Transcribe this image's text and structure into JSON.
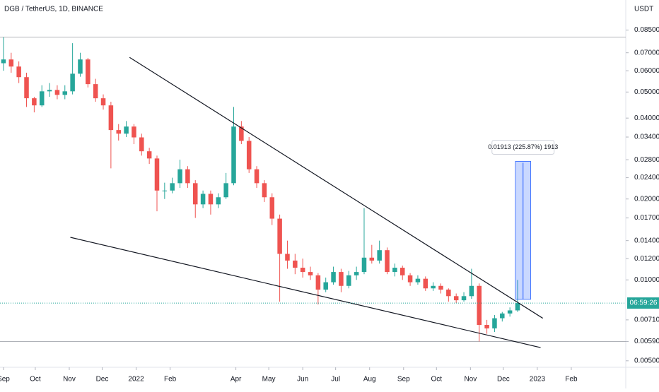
{
  "chart_data": {
    "type": "candlestick",
    "title": "DGB / TetherUS, 1D, BINANCE",
    "y_unit": "USDT",
    "log_scale": true,
    "up_color": "#26a69a",
    "down_color": "#ef5350",
    "x": [
      0,
      7,
      14,
      21,
      28,
      35,
      42,
      49,
      56,
      63,
      70,
      77,
      84,
      91,
      98,
      105,
      112,
      119,
      126,
      133,
      140,
      147,
      154,
      161,
      168,
      175,
      182,
      189,
      196,
      203,
      210,
      217,
      224,
      231,
      238,
      245,
      252,
      259,
      266,
      273,
      280,
      287,
      294,
      301,
      308,
      315,
      322,
      329,
      336,
      343,
      350,
      357,
      364,
      371,
      378,
      385,
      392,
      399,
      406,
      413,
      420,
      427,
      434,
      441,
      448,
      455,
      462,
      469
    ],
    "ohlc": [
      [
        0.064,
        0.08,
        0.06,
        0.0661
      ],
      [
        0.0661,
        0.07,
        0.059,
        0.0622
      ],
      [
        0.0622,
        0.065,
        0.054,
        0.0568
      ],
      [
        0.0568,
        0.059,
        0.044,
        0.0474
      ],
      [
        0.0474,
        0.048,
        0.042,
        0.0446
      ],
      [
        0.0446,
        0.053,
        0.044,
        0.0503
      ],
      [
        0.0503,
        0.054,
        0.048,
        0.0509
      ],
      [
        0.0509,
        0.053,
        0.047,
        0.0488
      ],
      [
        0.0488,
        0.053,
        0.047,
        0.0503
      ],
      [
        0.0503,
        0.076,
        0.049,
        0.0585
      ],
      [
        0.0585,
        0.07,
        0.057,
        0.0661
      ],
      [
        0.0661,
        0.067,
        0.052,
        0.0535
      ],
      [
        0.0535,
        0.056,
        0.046,
        0.0474
      ],
      [
        0.0474,
        0.049,
        0.043,
        0.0446
      ],
      [
        0.0446,
        0.046,
        0.026,
        0.0361
      ],
      [
        0.0361,
        0.038,
        0.033,
        0.035
      ],
      [
        0.035,
        0.039,
        0.034,
        0.0372
      ],
      [
        0.0372,
        0.038,
        0.032,
        0.0339
      ],
      [
        0.0339,
        0.035,
        0.029,
        0.0301
      ],
      [
        0.0301,
        0.031,
        0.027,
        0.0283
      ],
      [
        0.0283,
        0.029,
        0.018,
        0.0215
      ],
      [
        0.0215,
        0.023,
        0.02,
        0.0215
      ],
      [
        0.0215,
        0.024,
        0.021,
        0.0229
      ],
      [
        0.0229,
        0.028,
        0.022,
        0.0258
      ],
      [
        0.0258,
        0.0265,
        0.022,
        0.0229
      ],
      [
        0.0229,
        0.0235,
        0.017,
        0.0191
      ],
      [
        0.0191,
        0.0215,
        0.0185,
        0.0209
      ],
      [
        0.0209,
        0.0215,
        0.0175,
        0.0191
      ],
      [
        0.0191,
        0.021,
        0.0185,
        0.0203
      ],
      [
        0.0203,
        0.025,
        0.02,
        0.0229
      ],
      [
        0.0229,
        0.044,
        0.0225,
        0.0372
      ],
      [
        0.0372,
        0.039,
        0.032,
        0.0329
      ],
      [
        0.0329,
        0.034,
        0.025,
        0.0258
      ],
      [
        0.0258,
        0.0265,
        0.022,
        0.0229
      ],
      [
        0.0229,
        0.0235,
        0.0195,
        0.0203
      ],
      [
        0.0203,
        0.021,
        0.016,
        0.0169
      ],
      [
        0.0169,
        0.0175,
        0.0083,
        0.0125
      ],
      [
        0.0125,
        0.014,
        0.011,
        0.0118
      ],
      [
        0.0118,
        0.0125,
        0.0105,
        0.0111
      ],
      [
        0.0111,
        0.012,
        0.0102,
        0.0107
      ],
      [
        0.0107,
        0.0112,
        0.01,
        0.0104
      ],
      [
        0.0104,
        0.0106,
        0.0081,
        0.0092
      ],
      [
        0.0092,
        0.0102,
        0.009,
        0.0098
      ],
      [
        0.0098,
        0.0112,
        0.0096,
        0.0107
      ],
      [
        0.0107,
        0.011,
        0.009,
        0.0095
      ],
      [
        0.0095,
        0.0108,
        0.0093,
        0.0104
      ],
      [
        0.0104,
        0.0112,
        0.01,
        0.0107
      ],
      [
        0.0107,
        0.0185,
        0.0105,
        0.0121
      ],
      [
        0.0121,
        0.0135,
        0.0115,
        0.0118
      ],
      [
        0.0118,
        0.014,
        0.0115,
        0.0129
      ],
      [
        0.0129,
        0.0132,
        0.0105,
        0.0107
      ],
      [
        0.0107,
        0.0115,
        0.0103,
        0.0111
      ],
      [
        0.0111,
        0.0113,
        0.01,
        0.0104
      ],
      [
        0.0104,
        0.0106,
        0.0095,
        0.0098
      ],
      [
        0.0098,
        0.0104,
        0.0096,
        0.0101
      ],
      [
        0.0101,
        0.0103,
        0.0091,
        0.0093
      ],
      [
        0.0093,
        0.0098,
        0.0091,
        0.0095
      ],
      [
        0.0095,
        0.0097,
        0.0089,
        0.0092
      ],
      [
        0.0092,
        0.0093,
        0.0083,
        0.0087
      ],
      [
        0.0087,
        0.0089,
        0.0082,
        0.0084
      ],
      [
        0.0084,
        0.009,
        0.0083,
        0.0087
      ],
      [
        0.0087,
        0.011,
        0.0085,
        0.0095
      ],
      [
        0.0095,
        0.0097,
        0.0059,
        0.0068
      ],
      [
        0.0068,
        0.0071,
        0.0063,
        0.0066
      ],
      [
        0.0066,
        0.0074,
        0.0064,
        0.0072
      ],
      [
        0.0072,
        0.0076,
        0.007,
        0.0075
      ],
      [
        0.0075,
        0.0079,
        0.0073,
        0.0077
      ],
      [
        0.0077,
        0.01,
        0.0076,
        0.0082
      ]
    ],
    "xlim": [
      -3.2,
      567.7
    ],
    "ylim": [
      0.00473,
      0.11
    ],
    "xticks": [
      {
        "value": 0,
        "label": "Sep"
      },
      {
        "value": 29,
        "label": "Oct"
      },
      {
        "value": 60,
        "label": "Nov"
      },
      {
        "value": 90,
        "label": "Dec"
      },
      {
        "value": 121,
        "label": "2022"
      },
      {
        "value": 152,
        "label": "Feb"
      },
      {
        "value": 212,
        "label": "Apr"
      },
      {
        "value": 242,
        "label": "May"
      },
      {
        "value": 273,
        "label": "Jun"
      },
      {
        "value": 303,
        "label": "Jul"
      },
      {
        "value": 334,
        "label": "Aug"
      },
      {
        "value": 365,
        "label": "Sep"
      },
      {
        "value": 395,
        "label": "Oct"
      },
      {
        "value": 426,
        "label": "Nov"
      },
      {
        "value": 456,
        "label": "Dec"
      },
      {
        "value": 487,
        "label": "2023"
      },
      {
        "value": 518,
        "label": "Feb"
      }
    ],
    "yticks": [
      {
        "value": 0.085,
        "label": "0.08500"
      },
      {
        "value": 0.07,
        "label": "0.07000"
      },
      {
        "value": 0.06,
        "label": "0.06000"
      },
      {
        "value": 0.05,
        "label": "0.05000"
      },
      {
        "value": 0.04,
        "label": "0.04000"
      },
      {
        "value": 0.034,
        "label": "0.03400"
      },
      {
        "value": 0.028,
        "label": "0.02800"
      },
      {
        "value": 0.024,
        "label": "0.02400"
      },
      {
        "value": 0.02,
        "label": "0.02000"
      },
      {
        "value": 0.017,
        "label": "0.01700"
      },
      {
        "value": 0.014,
        "label": "0.01400"
      },
      {
        "value": 0.012,
        "label": "0.01200"
      },
      {
        "value": 0.01,
        "label": "0.01000"
      },
      {
        "value": 0.0071,
        "label": "0.00710"
      },
      {
        "value": 0.0059,
        "label": "0.00590"
      },
      {
        "value": 0.005,
        "label": "0.00500"
      }
    ],
    "trendlines": [
      {
        "x": [
          115,
          492
        ],
        "y": [
          0.0673,
          0.0072
        ]
      },
      {
        "x": [
          61,
          490
        ],
        "y": [
          0.0144,
          0.0056
        ]
      }
    ],
    "hlines": [
      0.08,
      0.0059
    ],
    "last_price": 0.0082,
    "countdown": "06:59:26",
    "measure": {
      "x": [
        467,
        481
      ],
      "y": [
        0.00847,
        0.0276
      ],
      "label": "0.01913 (225.87%) 1913"
    }
  }
}
